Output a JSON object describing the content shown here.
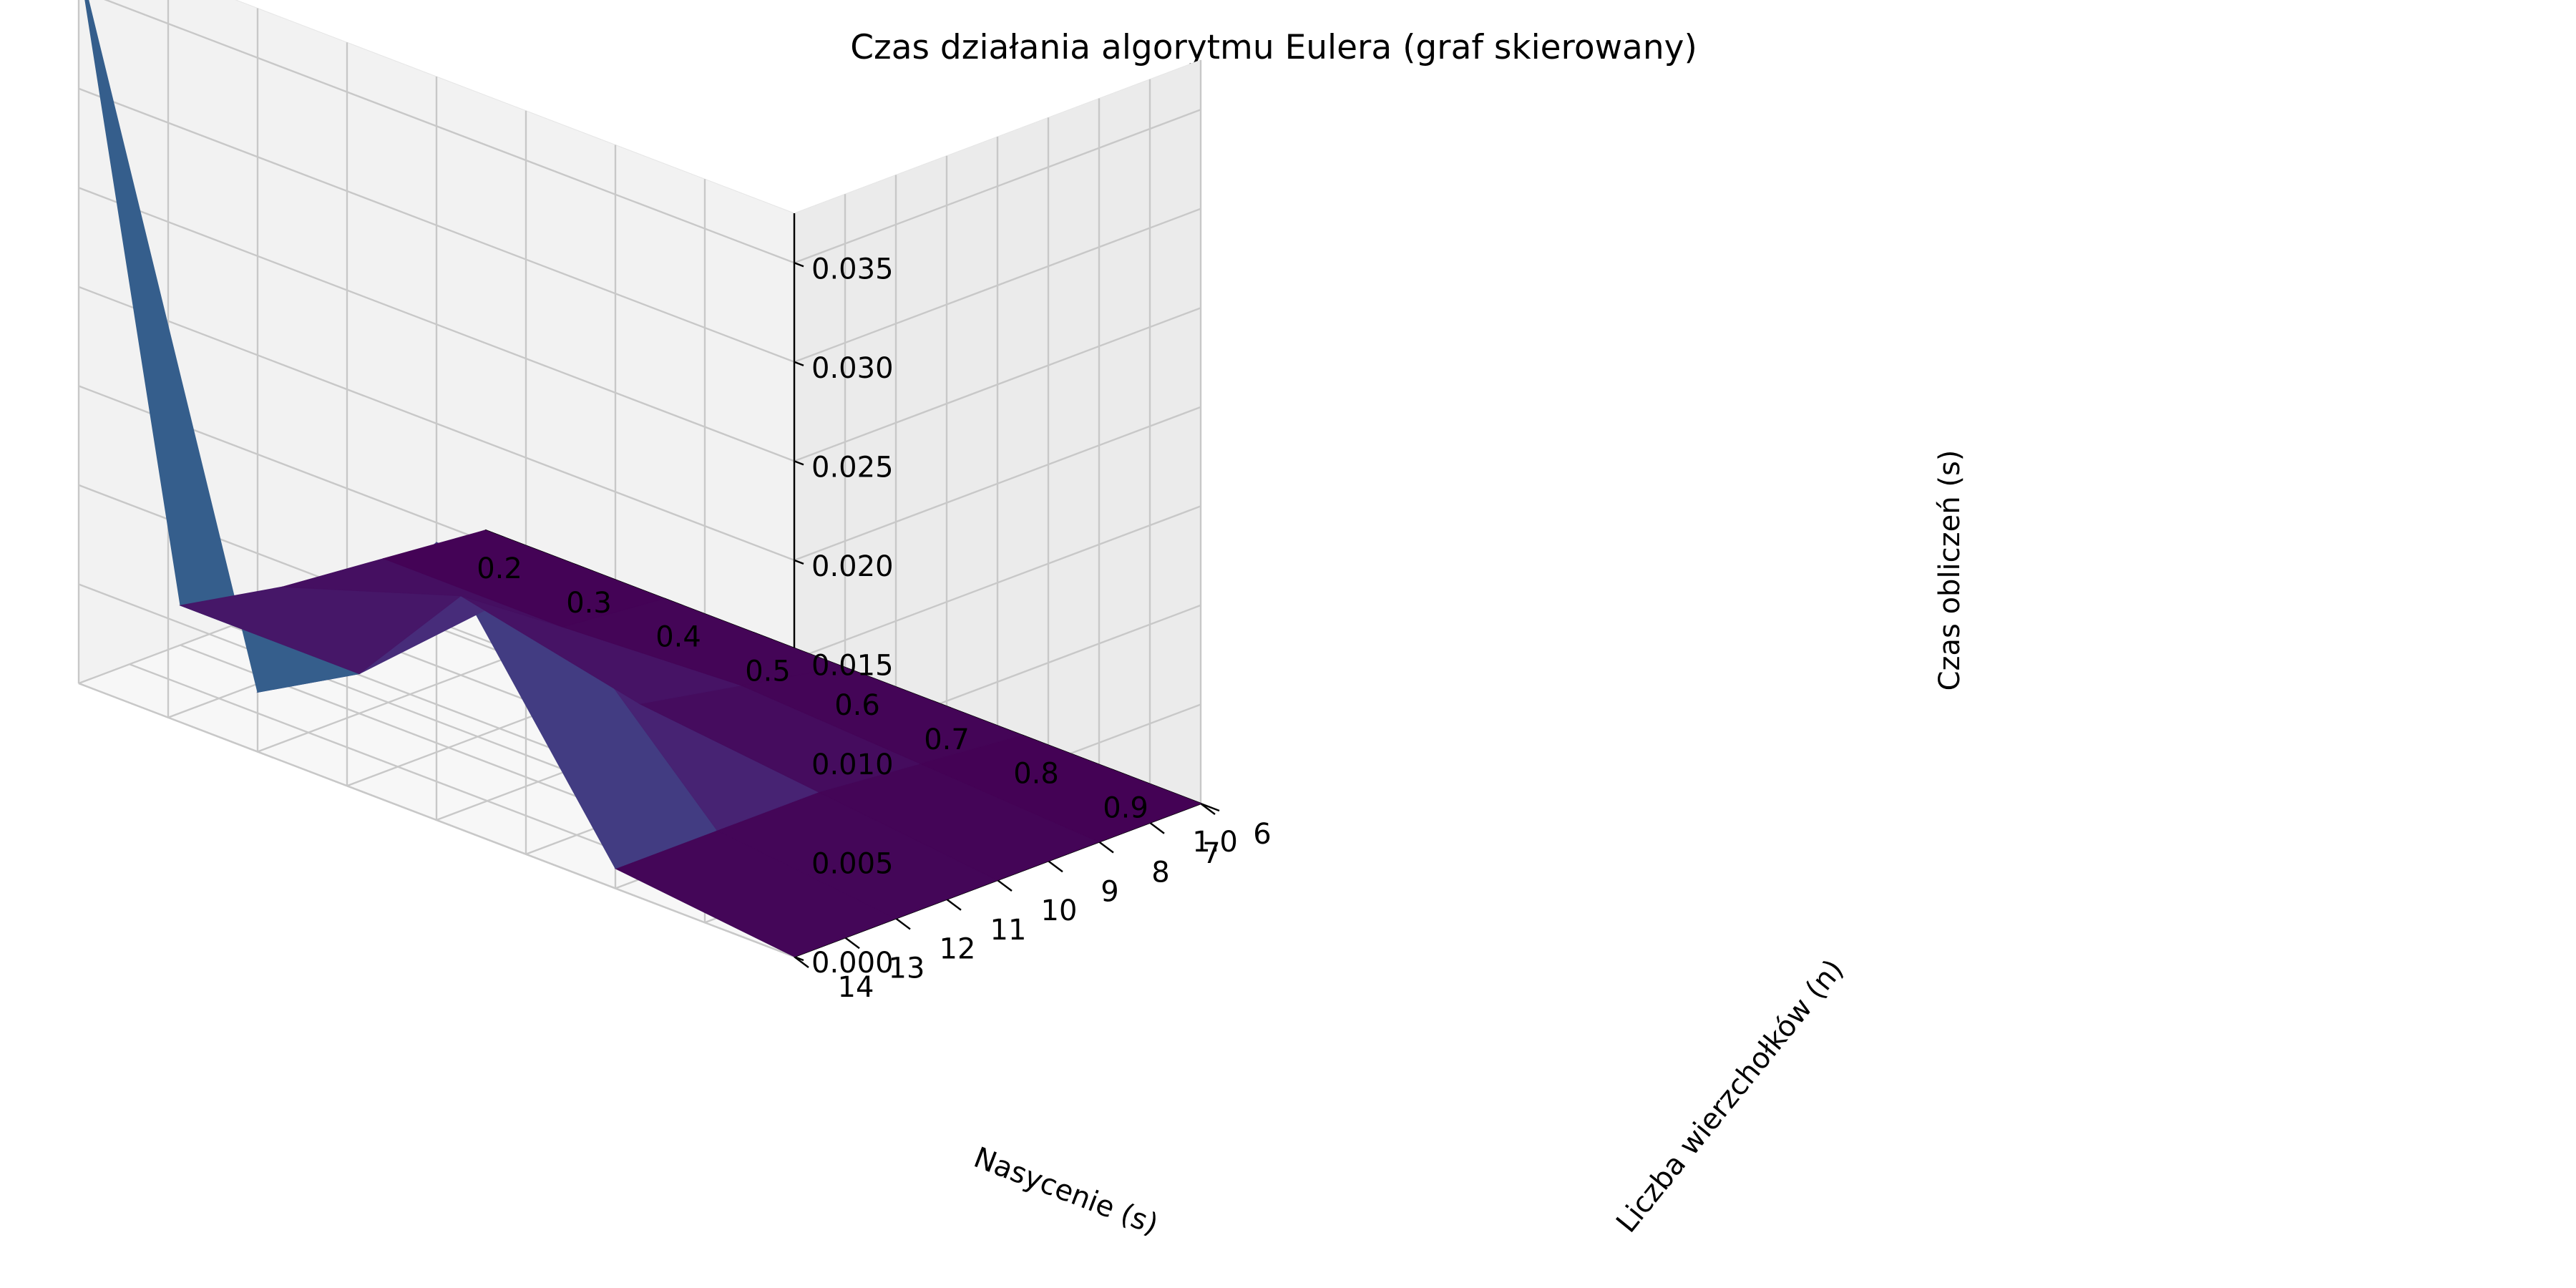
{
  "chart_data": {
    "type": "surface3d",
    "title": "Czas działania algorytmu Eulera (graf skierowany)",
    "xlabel": "Nasycenie (s)",
    "ylabel": "Liczba wierzchołków (n)",
    "zlabel": "Czas obliczeń (s)",
    "x": [
      0.2,
      0.4,
      0.6,
      0.8,
      1.0
    ],
    "y": [
      6,
      8,
      10,
      12,
      14
    ],
    "z": [
      [
        0.0,
        0.0005,
        0.001,
        0.002,
        0.0365
      ],
      [
        0.0,
        0.0005,
        0.004,
        0.002,
        0.003
      ],
      [
        0.0,
        0.001,
        0.002,
        0.01,
        0.014
      ],
      [
        0.0,
        0.0005,
        0.001,
        0.001,
        0.001
      ],
      [
        0.0,
        0.0,
        0.0,
        0.0,
        0.0
      ]
    ],
    "xlim": [
      0.2,
      1.0
    ],
    "ylim": [
      6,
      14
    ],
    "zlim": [
      0.0,
      0.0375
    ],
    "xticks": [
      "0.2",
      "0.3",
      "0.4",
      "0.5",
      "0.6",
      "0.7",
      "0.8",
      "0.9",
      "1.0"
    ],
    "yticks": [
      "6",
      "7",
      "8",
      "9",
      "10",
      "11",
      "12",
      "13",
      "14"
    ],
    "zticks": [
      "0.000",
      "0.005",
      "0.010",
      "0.015",
      "0.020",
      "0.025",
      "0.030",
      "0.035"
    ],
    "colormap": "viridis",
    "grid": true
  }
}
